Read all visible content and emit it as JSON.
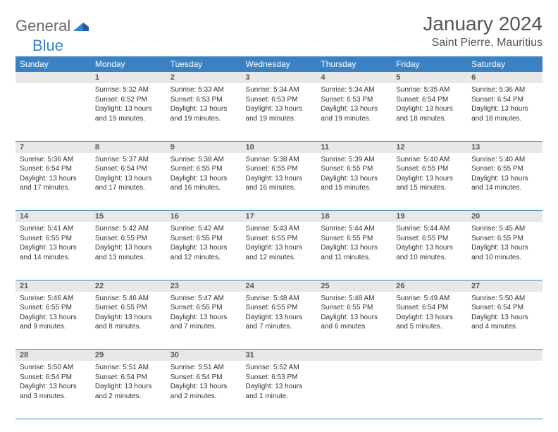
{
  "logo": {
    "general": "General",
    "blue": "Blue"
  },
  "title": "January 2024",
  "location": "Saint Pierre, Mauritius",
  "colors": {
    "header_bg": "#3b82c4",
    "daynum_bg": "#e8e8e8",
    "border": "#3b82c4",
    "text": "#333333"
  },
  "weekdays": [
    "Sunday",
    "Monday",
    "Tuesday",
    "Wednesday",
    "Thursday",
    "Friday",
    "Saturday"
  ],
  "weeks": [
    [
      null,
      {
        "n": "1",
        "sr": "5:32 AM",
        "ss": "6:52 PM",
        "dl": "13 hours and 19 minutes."
      },
      {
        "n": "2",
        "sr": "5:33 AM",
        "ss": "6:53 PM",
        "dl": "13 hours and 19 minutes."
      },
      {
        "n": "3",
        "sr": "5:34 AM",
        "ss": "6:53 PM",
        "dl": "13 hours and 19 minutes."
      },
      {
        "n": "4",
        "sr": "5:34 AM",
        "ss": "6:53 PM",
        "dl": "13 hours and 19 minutes."
      },
      {
        "n": "5",
        "sr": "5:35 AM",
        "ss": "6:54 PM",
        "dl": "13 hours and 18 minutes."
      },
      {
        "n": "6",
        "sr": "5:36 AM",
        "ss": "6:54 PM",
        "dl": "13 hours and 18 minutes."
      }
    ],
    [
      {
        "n": "7",
        "sr": "5:36 AM",
        "ss": "6:54 PM",
        "dl": "13 hours and 17 minutes."
      },
      {
        "n": "8",
        "sr": "5:37 AM",
        "ss": "6:54 PM",
        "dl": "13 hours and 17 minutes."
      },
      {
        "n": "9",
        "sr": "5:38 AM",
        "ss": "6:55 PM",
        "dl": "13 hours and 16 minutes."
      },
      {
        "n": "10",
        "sr": "5:38 AM",
        "ss": "6:55 PM",
        "dl": "13 hours and 16 minutes."
      },
      {
        "n": "11",
        "sr": "5:39 AM",
        "ss": "6:55 PM",
        "dl": "13 hours and 15 minutes."
      },
      {
        "n": "12",
        "sr": "5:40 AM",
        "ss": "6:55 PM",
        "dl": "13 hours and 15 minutes."
      },
      {
        "n": "13",
        "sr": "5:40 AM",
        "ss": "6:55 PM",
        "dl": "13 hours and 14 minutes."
      }
    ],
    [
      {
        "n": "14",
        "sr": "5:41 AM",
        "ss": "6:55 PM",
        "dl": "13 hours and 14 minutes."
      },
      {
        "n": "15",
        "sr": "5:42 AM",
        "ss": "6:55 PM",
        "dl": "13 hours and 13 minutes."
      },
      {
        "n": "16",
        "sr": "5:42 AM",
        "ss": "6:55 PM",
        "dl": "13 hours and 12 minutes."
      },
      {
        "n": "17",
        "sr": "5:43 AM",
        "ss": "6:55 PM",
        "dl": "13 hours and 12 minutes."
      },
      {
        "n": "18",
        "sr": "5:44 AM",
        "ss": "6:55 PM",
        "dl": "13 hours and 11 minutes."
      },
      {
        "n": "19",
        "sr": "5:44 AM",
        "ss": "6:55 PM",
        "dl": "13 hours and 10 minutes."
      },
      {
        "n": "20",
        "sr": "5:45 AM",
        "ss": "6:55 PM",
        "dl": "13 hours and 10 minutes."
      }
    ],
    [
      {
        "n": "21",
        "sr": "5:46 AM",
        "ss": "6:55 PM",
        "dl": "13 hours and 9 minutes."
      },
      {
        "n": "22",
        "sr": "5:46 AM",
        "ss": "6:55 PM",
        "dl": "13 hours and 8 minutes."
      },
      {
        "n": "23",
        "sr": "5:47 AM",
        "ss": "6:55 PM",
        "dl": "13 hours and 7 minutes."
      },
      {
        "n": "24",
        "sr": "5:48 AM",
        "ss": "6:55 PM",
        "dl": "13 hours and 7 minutes."
      },
      {
        "n": "25",
        "sr": "5:48 AM",
        "ss": "6:55 PM",
        "dl": "13 hours and 6 minutes."
      },
      {
        "n": "26",
        "sr": "5:49 AM",
        "ss": "6:54 PM",
        "dl": "13 hours and 5 minutes."
      },
      {
        "n": "27",
        "sr": "5:50 AM",
        "ss": "6:54 PM",
        "dl": "13 hours and 4 minutes."
      }
    ],
    [
      {
        "n": "28",
        "sr": "5:50 AM",
        "ss": "6:54 PM",
        "dl": "13 hours and 3 minutes."
      },
      {
        "n": "29",
        "sr": "5:51 AM",
        "ss": "6:54 PM",
        "dl": "13 hours and 2 minutes."
      },
      {
        "n": "30",
        "sr": "5:51 AM",
        "ss": "6:54 PM",
        "dl": "13 hours and 2 minutes."
      },
      {
        "n": "31",
        "sr": "5:52 AM",
        "ss": "6:53 PM",
        "dl": "13 hours and 1 minute."
      },
      null,
      null,
      null
    ]
  ],
  "labels": {
    "sunrise": "Sunrise:",
    "sunset": "Sunset:",
    "daylight": "Daylight:"
  }
}
